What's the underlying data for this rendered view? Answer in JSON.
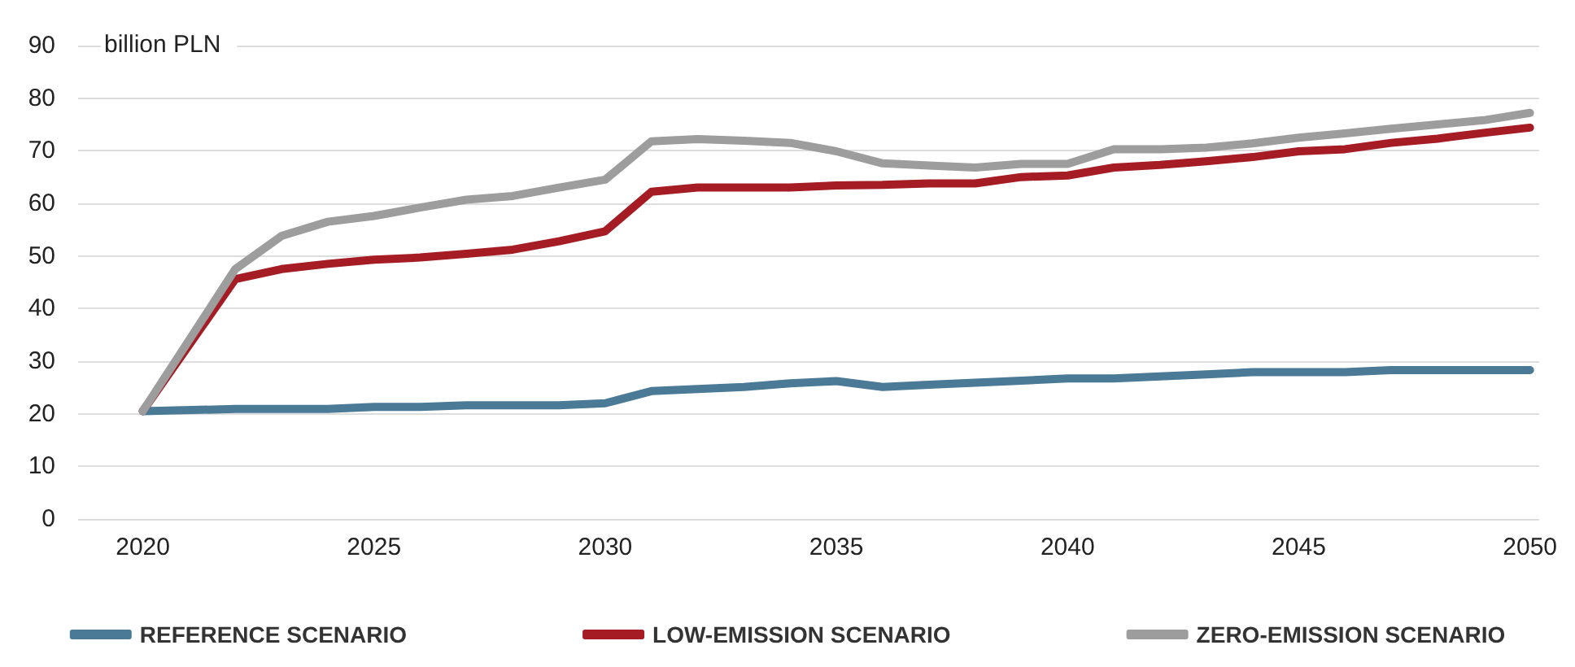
{
  "chart_data": {
    "type": "line",
    "ylabel": "billion PLN",
    "x": [
      2020,
      2022,
      2023,
      2024,
      2025,
      2026,
      2027,
      2028,
      2029,
      2030,
      2031,
      2032,
      2033,
      2034,
      2035,
      2036,
      2037,
      2038,
      2039,
      2040,
      2041,
      2042,
      2043,
      2044,
      2045,
      2046,
      2047,
      2048,
      2049,
      2050
    ],
    "series": [
      {
        "name": "REFERENCE SCENARIO",
        "color": "#4a7a96",
        "values": [
          20.5,
          20.9,
          20.9,
          20.9,
          21.3,
          21.3,
          21.6,
          21.6,
          21.6,
          22,
          24.3,
          24.7,
          25.1,
          25.8,
          26.2,
          25.1,
          25.5,
          25.9,
          26.3,
          26.7,
          26.7,
          27.1,
          27.5,
          27.9,
          27.9,
          27.9,
          28.3,
          28.3,
          28.3,
          28.3
        ]
      },
      {
        "name": "LOW-EMISSION SCENARIO",
        "color": "#a51c24",
        "values": [
          20.5,
          45.6,
          47.5,
          48.5,
          49.3,
          49.7,
          50.4,
          51.2,
          52.8,
          54.7,
          62.2,
          63,
          63,
          63,
          63.4,
          63.5,
          63.8,
          63.8,
          65,
          65.3,
          66.8,
          67.3,
          68,
          68.8,
          69.9,
          70.3,
          71.5,
          72.3,
          73.4,
          74.4
        ]
      },
      {
        "name": "ZERO-EMISSION SCENARIO",
        "color": "#9d9d9d",
        "values": [
          20.5,
          47.5,
          53.8,
          56.5,
          57.6,
          59.2,
          60.7,
          61.4,
          63,
          64.5,
          71.8,
          72.2,
          71.9,
          71.5,
          69.9,
          67.6,
          67.2,
          66.8,
          67.5,
          67.5,
          70.3,
          70.3,
          70.6,
          71.4,
          72.5,
          73.3,
          74.2,
          75,
          75.8,
          77.2
        ]
      }
    ],
    "xlim": [
      2018.6,
      2050.2
    ],
    "xticks": [
      2020,
      2025,
      2030,
      2035,
      2040,
      2045,
      2050
    ],
    "ylim": [
      0,
      90
    ],
    "yticks": [
      0,
      10,
      20,
      30,
      40,
      50,
      60,
      70,
      80,
      90
    ],
    "grid": "y",
    "legend": "bottom",
    "marker": "none",
    "line_style": "solid"
  }
}
